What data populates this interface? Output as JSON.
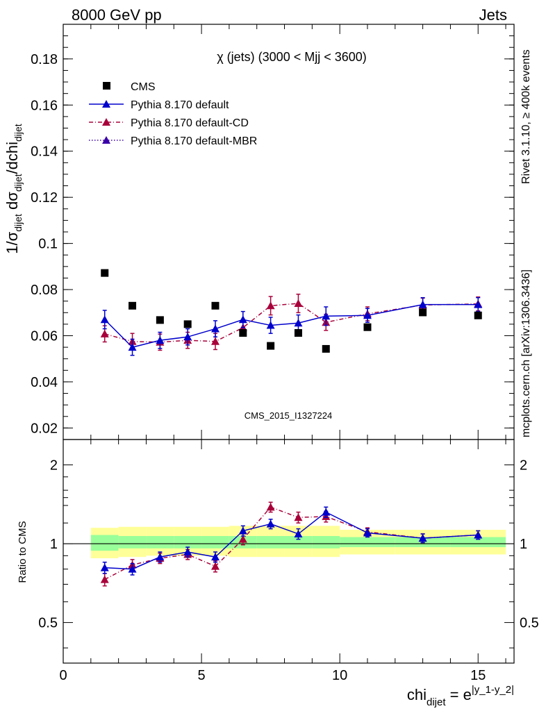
{
  "header": {
    "left": "8000 GeV pp",
    "right": "Jets"
  },
  "side_labels": {
    "rivet": "Rivet 3.1.10, ≥ 400k events",
    "mcplots": "mcplots.cern.ch [arXiv:1306.3436]"
  },
  "watermark": "CMS_2015_I1327224",
  "title": "χ (jets) (3000 < Mjj < 3600)",
  "y_label": {
    "top": "1/σdijet dσdijet/dchidijet",
    "bottom": "Ratio to CMS"
  },
  "x_label": "chidijet = e|y_1-y_2|",
  "colors": {
    "cms": "#000000",
    "default": "#0000cc",
    "cd": "#a8003a",
    "mbr": "#3a00a8",
    "band_inner": "#99ff99",
    "band_outer": "#ffff99"
  },
  "chart_data": [
    {
      "type": "scatter",
      "panel": "main",
      "title": "χ (jets) (3000 < Mjj < 3600)",
      "xlim": [
        0,
        16.3
      ],
      "ylim": [
        0.015,
        0.195
      ],
      "yticks": [
        0.02,
        0.04,
        0.06,
        0.08,
        0.1,
        0.12,
        0.14,
        0.16,
        0.18
      ],
      "ytick_labels": [
        "0.02",
        "0.04",
        "0.06",
        "0.08",
        "0.1",
        "0.12",
        "0.14",
        "0.16",
        "0.18"
      ],
      "legend_position": "top-left",
      "series": [
        {
          "name": "CMS",
          "style": "square-marker",
          "x": [
            1.5,
            2.5,
            3.5,
            4.5,
            5.5,
            6.5,
            7.5,
            8.5,
            9.5,
            11,
            13,
            15
          ],
          "y": [
            0.0872,
            0.073,
            0.0668,
            0.065,
            0.073,
            0.0612,
            0.0556,
            0.0612,
            0.0543,
            0.0637,
            0.0701,
            0.0688
          ]
        },
        {
          "name": "Pythia 8.170 default",
          "style": "solid",
          "x": [
            1.5,
            2.5,
            3.5,
            4.5,
            5.5,
            6.5,
            7.5,
            8.5,
            9.5,
            11,
            13,
            15
          ],
          "y": [
            0.067,
            0.055,
            0.058,
            0.0595,
            0.063,
            0.067,
            0.0645,
            0.0655,
            0.0685,
            0.0688,
            0.0735,
            0.0735
          ],
          "err": [
            0.004,
            0.0035,
            0.0035,
            0.0035,
            0.0035,
            0.0035,
            0.0035,
            0.0035,
            0.004,
            0.003,
            0.003,
            0.003
          ]
        },
        {
          "name": "Pythia 8.170 default-CD",
          "style": "dash-dot",
          "x": [
            1.5,
            2.5,
            3.5,
            4.5,
            5.5,
            6.5,
            7.5,
            8.5,
            9.5,
            11,
            13,
            15
          ],
          "y": [
            0.0608,
            0.0575,
            0.0572,
            0.058,
            0.0575,
            0.0635,
            0.073,
            0.074,
            0.0658,
            0.0695,
            0.0733,
            0.0738
          ],
          "err": [
            0.0035,
            0.0035,
            0.0035,
            0.0035,
            0.0035,
            0.0035,
            0.004,
            0.004,
            0.0035,
            0.003,
            0.003,
            0.003
          ]
        },
        {
          "name": "Pythia 8.170 default-MBR",
          "style": "dotted",
          "x": [],
          "y": []
        }
      ]
    },
    {
      "type": "scatter",
      "panel": "ratio",
      "xlim": [
        0,
        16.3
      ],
      "ylim": [
        0.35,
        2.5
      ],
      "yscale": "log",
      "ylabel": "Ratio to CMS",
      "xlabel": "chidijet = e|y_1-y_2|",
      "yticks": [
        0.5,
        1,
        2
      ],
      "ytick_labels": [
        "0.5",
        "1",
        "2"
      ],
      "xticks": [
        0,
        5,
        10,
        15
      ],
      "xtick_labels": [
        "0",
        "5",
        "10",
        "15"
      ],
      "bands": {
        "edges": [
          1,
          2,
          3,
          4,
          5,
          6,
          7,
          8,
          9,
          10,
          12,
          14,
          16
        ],
        "inner_lo": [
          0.94,
          0.96,
          0.96,
          0.96,
          0.96,
          0.96,
          0.96,
          0.96,
          0.96,
          0.97,
          0.97,
          0.97
        ],
        "inner_hi": [
          1.08,
          1.07,
          1.07,
          1.07,
          1.07,
          1.07,
          1.07,
          1.07,
          1.07,
          1.06,
          1.06,
          1.06
        ],
        "outer_lo": [
          0.88,
          0.89,
          0.9,
          0.9,
          0.9,
          0.89,
          0.89,
          0.89,
          0.89,
          0.91,
          0.91,
          0.91
        ],
        "outer_hi": [
          1.15,
          1.16,
          1.16,
          1.16,
          1.16,
          1.17,
          1.17,
          1.17,
          1.17,
          1.13,
          1.13,
          1.13
        ]
      },
      "series": [
        {
          "name": "Pythia 8.170 default",
          "x": [
            1.5,
            2.5,
            3.5,
            4.5,
            5.5,
            6.5,
            7.5,
            8.5,
            9.5,
            11,
            13,
            15
          ],
          "y": [
            0.81,
            0.8,
            0.89,
            0.93,
            0.89,
            1.12,
            1.19,
            1.09,
            1.32,
            1.1,
            1.05,
            1.08
          ],
          "err": [
            0.04,
            0.04,
            0.04,
            0.04,
            0.04,
            0.05,
            0.05,
            0.05,
            0.06,
            0.04,
            0.04,
            0.04
          ]
        },
        {
          "name": "Pythia 8.170 default-CD",
          "x": [
            1.5,
            2.5,
            3.5,
            4.5,
            5.5,
            6.5,
            7.5,
            8.5,
            9.5,
            11,
            13,
            15
          ],
          "y": [
            0.73,
            0.83,
            0.88,
            0.91,
            0.82,
            1.04,
            1.38,
            1.26,
            1.27,
            1.11,
            1.05,
            1.08
          ],
          "err": [
            0.04,
            0.04,
            0.04,
            0.04,
            0.04,
            0.05,
            0.06,
            0.06,
            0.06,
            0.04,
            0.04,
            0.04
          ]
        }
      ]
    }
  ]
}
